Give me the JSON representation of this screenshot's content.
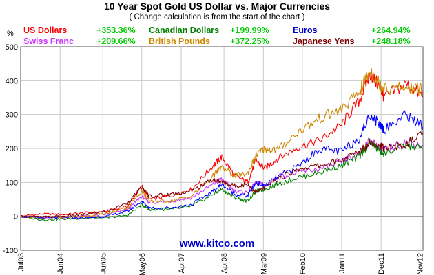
{
  "chart_data": {
    "type": "line",
    "title": "10 Year Spot Gold US Dollar vs. Major Currencies",
    "subtitle": "( Change calculation is from the start of the chart )",
    "ylabel": "%",
    "ylim": [
      -100,
      500
    ],
    "yticks": [
      "500",
      "400",
      "300",
      "200",
      "100",
      "0",
      "-100"
    ],
    "xlim": [
      2003.5,
      2012.9
    ],
    "xticks": [
      {
        "label": "Jul03",
        "x": 2003.5
      },
      {
        "label": "Jun04",
        "x": 2004.42
      },
      {
        "label": "Jun05",
        "x": 2005.42
      },
      {
        "label": "May06",
        "x": 2006.33
      },
      {
        "label": "Apr07",
        "x": 2007.25
      },
      {
        "label": "Apr08",
        "x": 2008.25
      },
      {
        "label": "Mar09",
        "x": 2009.17
      },
      {
        "label": "Feb10",
        "x": 2010.08
      },
      {
        "label": "Jan11",
        "x": 2011.0
      },
      {
        "label": "Dec11",
        "x": 2011.92
      },
      {
        "label": "Nov12",
        "x": 2012.83
      }
    ],
    "grid": true,
    "legend_placement": "top",
    "watermark": "www.kitco.com",
    "x": [
      2003.5,
      2004.0,
      2004.5,
      2005.0,
      2005.5,
      2006.0,
      2006.33,
      2006.5,
      2007.0,
      2007.5,
      2008.0,
      2008.2,
      2008.5,
      2008.8,
      2009.0,
      2009.2,
      2009.5,
      2010.0,
      2010.5,
      2011.0,
      2011.4,
      2011.67,
      2011.9,
      2012.0,
      2012.5,
      2012.9
    ],
    "series": [
      {
        "name": "US Dollars",
        "change": "+353.36%",
        "color": "#ff0000",
        "values": [
          0,
          7,
          5,
          10,
          14,
          30,
          90,
          50,
          60,
          80,
          150,
          175,
          120,
          100,
          165,
          140,
          170,
          205,
          225,
          270,
          340,
          420,
          380,
          350,
          390,
          353
        ]
      },
      {
        "name": "Swiss Franc",
        "change": "+209.66%",
        "color": "#cc33ff",
        "values": [
          0,
          -5,
          -3,
          0,
          5,
          20,
          60,
          40,
          45,
          55,
          95,
          110,
          75,
          70,
          100,
          90,
          115,
          130,
          140,
          160,
          185,
          225,
          200,
          195,
          220,
          210
        ]
      },
      {
        "name": "Canadian Dollars",
        "change": "+199.99%",
        "color": "#008000",
        "values": [
          0,
          -10,
          -8,
          -5,
          -5,
          3,
          35,
          20,
          20,
          30,
          65,
          80,
          55,
          45,
          75,
          80,
          95,
          115,
          130,
          150,
          175,
          220,
          190,
          185,
          210,
          200
        ]
      },
      {
        "name": "British Pounds",
        "change": "+372.25%",
        "color": "#cc8800",
        "values": [
          0,
          -5,
          -3,
          0,
          8,
          25,
          75,
          45,
          45,
          60,
          120,
          145,
          120,
          125,
          180,
          200,
          195,
          250,
          290,
          315,
          365,
          430,
          390,
          375,
          380,
          372
        ]
      },
      {
        "name": "Euros",
        "change": "+264.94%",
        "color": "#0000ff",
        "values": [
          0,
          -5,
          -3,
          -5,
          0,
          15,
          45,
          25,
          25,
          35,
          75,
          95,
          65,
          60,
          100,
          90,
          115,
          150,
          200,
          190,
          230,
          300,
          270,
          255,
          300,
          265
        ]
      },
      {
        "name": "Japanese Yens",
        "change": "+248.18%",
        "color": "#800000",
        "values": [
          0,
          -2,
          0,
          5,
          15,
          40,
          85,
          60,
          65,
          75,
          110,
          100,
          90,
          95,
          70,
          85,
          110,
          140,
          150,
          165,
          190,
          220,
          210,
          200,
          210,
          248
        ]
      }
    ]
  }
}
